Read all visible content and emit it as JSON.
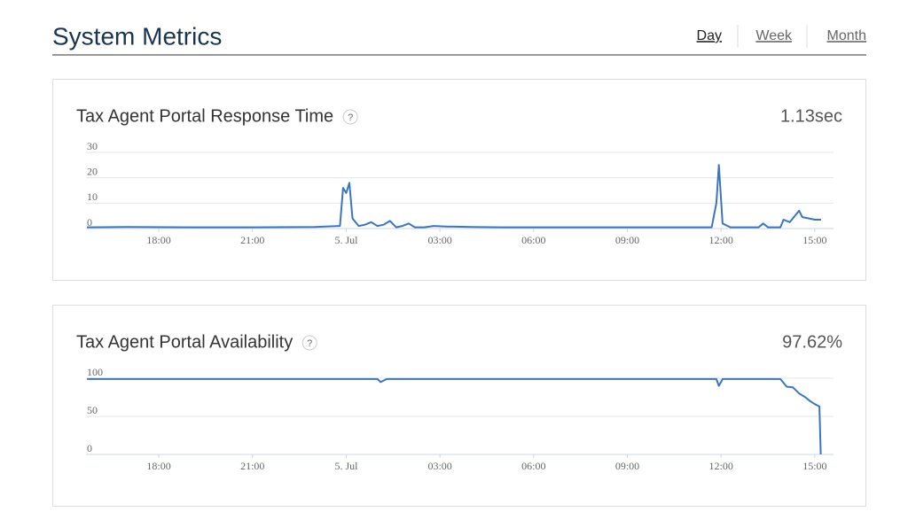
{
  "header": {
    "title": "System Metrics",
    "tabs": [
      "Day",
      "Week",
      "Month"
    ],
    "active_tab": 0
  },
  "chart_data": [
    {
      "type": "line",
      "title": "Tax Agent Portal Response Time",
      "help": "?",
      "current": "1.13sec",
      "color": "#3a76bd",
      "xlim": [
        15.67,
        39.6
      ],
      "ylim": [
        0,
        30
      ],
      "yticks": [
        0,
        10,
        20,
        30
      ],
      "grid": true,
      "xticks": [
        {
          "value": 18,
          "label": "18:00"
        },
        {
          "value": 21,
          "label": "21:00"
        },
        {
          "value": 24,
          "label": "5. Jul"
        },
        {
          "value": 27,
          "label": "03:00"
        },
        {
          "value": 30,
          "label": "06:00"
        },
        {
          "value": 33,
          "label": "09:00"
        },
        {
          "value": 36,
          "label": "12:00"
        },
        {
          "value": 39,
          "label": "15:00"
        }
      ],
      "x": [
        15.7,
        17,
        19,
        21,
        23,
        23.8,
        23.9,
        24.0,
        24.1,
        24.2,
        24.4,
        24.6,
        24.8,
        25.0,
        25.2,
        25.4,
        25.6,
        25.8,
        26.0,
        26.2,
        26.5,
        26.8,
        27.2,
        28,
        29,
        30,
        32,
        34,
        35.7,
        35.85,
        35.93,
        36.05,
        36.3,
        37.2,
        37.35,
        37.5,
        37.9,
        38.0,
        38.2,
        38.5,
        38.6,
        38.8,
        39.0,
        39.2
      ],
      "values": [
        0.5,
        0.6,
        0.5,
        0.5,
        0.6,
        1,
        16,
        14,
        18,
        4,
        1,
        1.5,
        2.5,
        1,
        1.5,
        3,
        0.5,
        1,
        2,
        0.5,
        0.5,
        1,
        0.8,
        0.6,
        0.5,
        0.5,
        0.5,
        0.5,
        0.5,
        10,
        25,
        2,
        0.5,
        0.5,
        2,
        0.5,
        0.5,
        3.5,
        2.5,
        7,
        4.5,
        4,
        3.5,
        3.5
      ]
    },
    {
      "type": "line",
      "title": "Tax Agent Portal Availability",
      "help": "?",
      "current": "97.62%",
      "color": "#3a76bd",
      "xlim": [
        15.67,
        39.6
      ],
      "ylim": [
        0,
        100
      ],
      "yticks": [
        0,
        50,
        100
      ],
      "grid": true,
      "xticks": [
        {
          "value": 18,
          "label": "18:00"
        },
        {
          "value": 21,
          "label": "21:00"
        },
        {
          "value": 24,
          "label": "5. Jul"
        },
        {
          "value": 27,
          "label": "03:00"
        },
        {
          "value": 30,
          "label": "06:00"
        },
        {
          "value": 33,
          "label": "09:00"
        },
        {
          "value": 36,
          "label": "12:00"
        },
        {
          "value": 39,
          "label": "15:00"
        }
      ],
      "x": [
        15.7,
        20,
        24,
        25.0,
        25.1,
        25.3,
        30,
        33,
        35.85,
        35.93,
        36.05,
        37,
        37.9,
        38.1,
        38.3,
        38.5,
        38.7,
        38.85,
        39.0,
        39.1,
        39.15,
        39.19
      ],
      "values": [
        99,
        99,
        99,
        99,
        95,
        99,
        99,
        99,
        99,
        90,
        99,
        99,
        99,
        89,
        88,
        80,
        75,
        70,
        66,
        64,
        63,
        0
      ]
    }
  ]
}
